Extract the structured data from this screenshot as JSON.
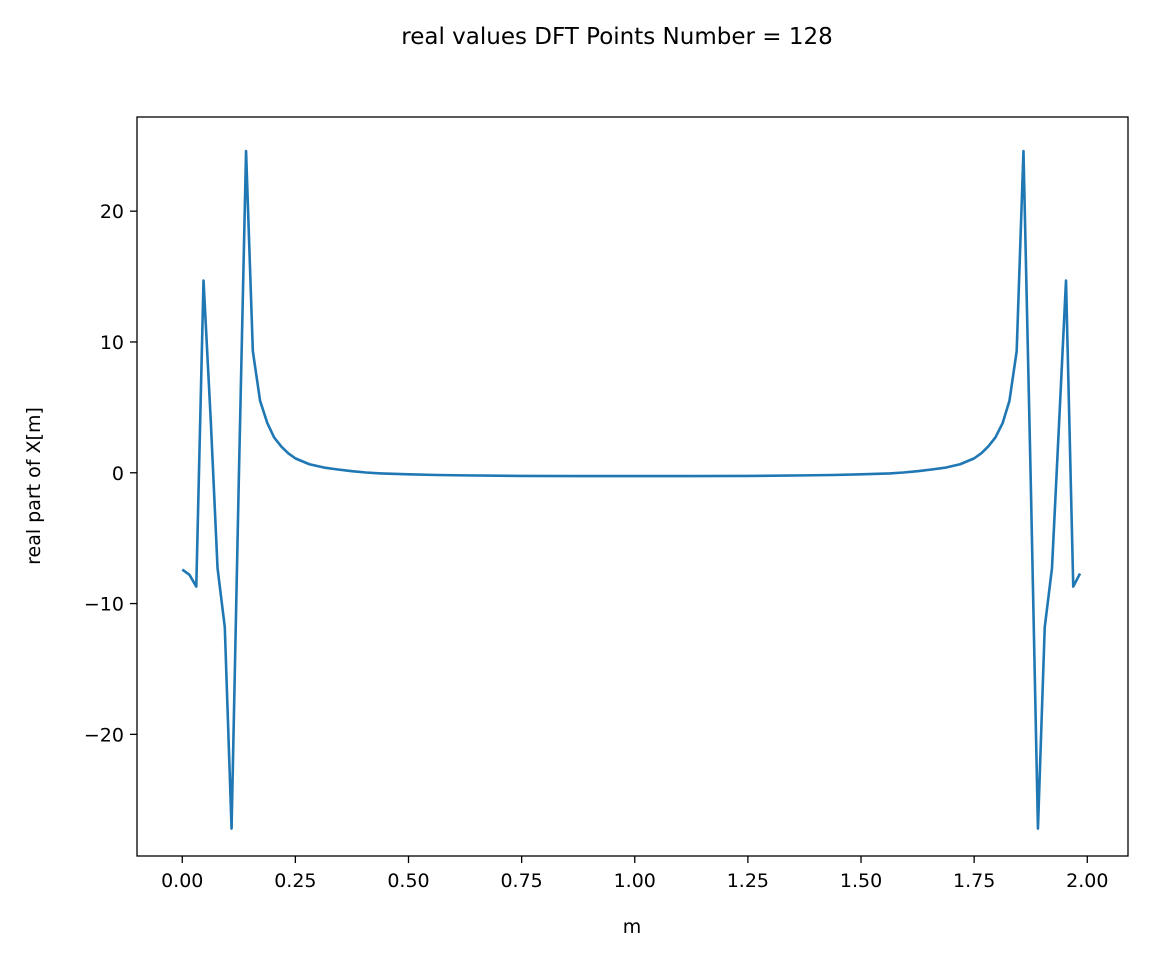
{
  "chart_data": {
    "type": "line",
    "title": "real values DFT Points Number = 128",
    "xlabel": "m",
    "ylabel": "real part of X[m]",
    "xlim": [
      -0.1,
      2.09
    ],
    "ylim": [
      -29.3,
      27.2
    ],
    "xticks": [
      0.0,
      0.25,
      0.5,
      0.75,
      1.0,
      1.25,
      1.5,
      1.75,
      2.0
    ],
    "xtick_labels": [
      "0.00",
      "0.25",
      "0.50",
      "0.75",
      "1.00",
      "1.25",
      "1.50",
      "1.75",
      "2.00"
    ],
    "yticks": [
      -20,
      -10,
      0,
      10,
      20
    ],
    "ytick_labels": [
      "−20",
      "−10",
      "0",
      "10",
      "20"
    ],
    "grid": false,
    "series": [
      {
        "color": "#1f77b4",
        "x": [
          0.0,
          0.016,
          0.031,
          0.047,
          0.063,
          0.078,
          0.094,
          0.109,
          0.125,
          0.141,
          0.156,
          0.172,
          0.188,
          0.203,
          0.219,
          0.234,
          0.25,
          0.281,
          0.313,
          0.344,
          0.375,
          0.406,
          0.438,
          0.5,
          0.563,
          0.625,
          0.75,
          0.875,
          1.0,
          1.125,
          1.25,
          1.375,
          1.438,
          1.5,
          1.563,
          1.594,
          1.625,
          1.656,
          1.688,
          1.719,
          1.75,
          1.766,
          1.781,
          1.797,
          1.813,
          1.828,
          1.844,
          1.859,
          1.875,
          1.891,
          1.906,
          1.922,
          1.938,
          1.953,
          1.969,
          1.984
        ],
        "y": [
          -7.4,
          -7.8,
          -8.7,
          14.7,
          4.0,
          -7.3,
          -11.8,
          -27.2,
          -0.5,
          24.6,
          9.3,
          5.5,
          3.8,
          2.7,
          2.0,
          1.5,
          1.1,
          0.65,
          0.4,
          0.25,
          0.12,
          0.02,
          -0.05,
          -0.12,
          -0.17,
          -0.2,
          -0.24,
          -0.25,
          -0.25,
          -0.25,
          -0.24,
          -0.2,
          -0.17,
          -0.12,
          -0.05,
          0.02,
          0.12,
          0.25,
          0.4,
          0.65,
          1.1,
          1.5,
          2.0,
          2.7,
          3.8,
          5.5,
          9.3,
          24.6,
          -0.5,
          -27.2,
          -11.8,
          -7.3,
          4.0,
          14.7,
          -8.7,
          -7.7
        ]
      }
    ]
  }
}
